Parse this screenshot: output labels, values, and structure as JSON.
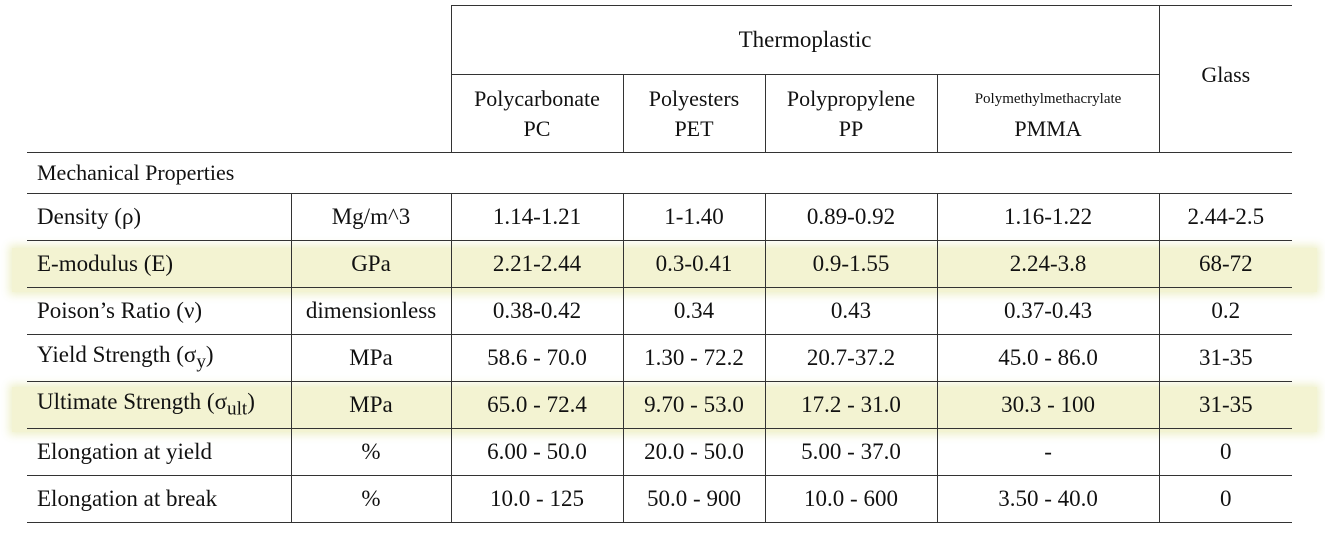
{
  "header": {
    "group_label": "Thermoplastic",
    "glass_label": "Glass",
    "materials": [
      {
        "name": "Polycarbonate",
        "abbr": "PC"
      },
      {
        "name": "Polyesters",
        "abbr": "PET"
      },
      {
        "name": "Polypropylene",
        "abbr": "PP"
      },
      {
        "name": "Polymethylmethacrylate",
        "abbr": "PMMA"
      }
    ]
  },
  "section_title": "Mechanical Properties",
  "rows": [
    {
      "property": "Density (ρ)",
      "unit": "Mg/m^3",
      "values": [
        "1.14-1.21",
        "1-1.40",
        "0.89-0.92",
        "1.16-1.22",
        "2.44-2.5"
      ],
      "highlighted": false
    },
    {
      "property": "E-modulus (E)",
      "unit": "GPa",
      "values": [
        "2.21-2.44",
        "0.3-0.41",
        "0.9-1.55",
        "2.24-3.8",
        "68-72"
      ],
      "highlighted": true
    },
    {
      "property": "Poison’s Ratio (ν)",
      "unit": "dimensionless",
      "values": [
        "0.38-0.42",
        "0.34",
        "0.43",
        "0.37-0.43",
        "0.2"
      ],
      "highlighted": false
    },
    {
      "property": "Yield Strength (σ",
      "property_sub": "y",
      "property_end": ")",
      "unit": "MPa",
      "values": [
        "58.6 - 70.0",
        "1.30 - 72.2",
        "20.7-37.2",
        "45.0 - 86.0",
        "31-35"
      ],
      "highlighted": false
    },
    {
      "property": "Ultimate Strength (σ",
      "property_sub": "ult",
      "property_end": ")",
      "unit": "MPa",
      "values": [
        "65.0 - 72.4",
        "9.70 - 53.0",
        "17.2 - 31.0",
        "30.3 - 100",
        "31-35"
      ],
      "highlighted": true
    },
    {
      "property": "Elongation at yield",
      "unit": "%",
      "values": [
        "6.00 - 50.0",
        "20.0 - 50.0",
        "5.00 - 37.0",
        "-",
        "0"
      ],
      "highlighted": false
    },
    {
      "property": "Elongation at break",
      "unit": "%",
      "values": [
        "10.0 - 125",
        "50.0 - 900",
        "10.0 - 600",
        "3.50 - 40.0",
        "0"
      ],
      "highlighted": false
    }
  ],
  "colors": {
    "highlight": "#f3f3d2",
    "border": "#333333"
  }
}
